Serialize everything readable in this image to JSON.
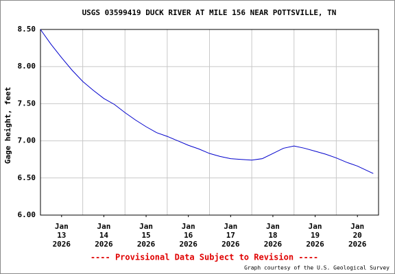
{
  "chart_data": {
    "type": "line",
    "title": "USGS 03599419 DUCK RIVER AT MILE 156 NEAR POTTSVILLE, TN",
    "y_label": "Gage height, feet",
    "footer": "---- Provisional Data Subject to Revision ----",
    "credit": "Graph courtesy of the U.S. Geological Survey",
    "xlim": [
      "2026-01-13T00:00",
      "2026-01-21T00:00"
    ],
    "xticks": [
      {
        "value": "2026-01-13T12:00",
        "label": [
          "Jan",
          "13",
          "2026"
        ]
      },
      {
        "value": "2026-01-14T12:00",
        "label": [
          "Jan",
          "14",
          "2026"
        ]
      },
      {
        "value": "2026-01-15T12:00",
        "label": [
          "Jan",
          "15",
          "2026"
        ]
      },
      {
        "value": "2026-01-16T12:00",
        "label": [
          "Jan",
          "16",
          "2026"
        ]
      },
      {
        "value": "2026-01-17T12:00",
        "label": [
          "Jan",
          "17",
          "2026"
        ]
      },
      {
        "value": "2026-01-18T12:00",
        "label": [
          "Jan",
          "18",
          "2026"
        ]
      },
      {
        "value": "2026-01-19T12:00",
        "label": [
          "Jan",
          "19",
          "2026"
        ]
      },
      {
        "value": "2026-01-20T12:00",
        "label": [
          "Jan",
          "20",
          "2026"
        ]
      }
    ],
    "xgrid": [
      "2026-01-14T00:00",
      "2026-01-15T00:00",
      "2026-01-16T00:00",
      "2026-01-17T00:00",
      "2026-01-18T00:00",
      "2026-01-19T00:00",
      "2026-01-20T00:00"
    ],
    "ylim": [
      6,
      8.5
    ],
    "yticks": [
      {
        "value": 6,
        "label": "6.00"
      },
      {
        "value": 6.5,
        "label": "6.50"
      },
      {
        "value": 7,
        "label": "7.00"
      },
      {
        "value": 7.5,
        "label": "7.50"
      },
      {
        "value": 8,
        "label": "8.00"
      },
      {
        "value": 8.5,
        "label": "8.50"
      }
    ],
    "grid": true,
    "series": [
      {
        "name": "Gage height",
        "color": "#0000cc",
        "x": [
          "2026-01-13T00:00",
          "2026-01-13T06:00",
          "2026-01-13T12:00",
          "2026-01-13T18:00",
          "2026-01-14T00:00",
          "2026-01-14T06:00",
          "2026-01-14T12:00",
          "2026-01-14T18:00",
          "2026-01-15T00:00",
          "2026-01-15T06:00",
          "2026-01-15T12:00",
          "2026-01-15T18:00",
          "2026-01-16T00:00",
          "2026-01-16T06:00",
          "2026-01-16T12:00",
          "2026-01-16T18:00",
          "2026-01-17T00:00",
          "2026-01-17T06:00",
          "2026-01-17T12:00",
          "2026-01-17T18:00",
          "2026-01-18T00:00",
          "2026-01-18T06:00",
          "2026-01-18T12:00",
          "2026-01-18T18:00",
          "2026-01-19T00:00",
          "2026-01-19T06:00",
          "2026-01-19T12:00",
          "2026-01-19T18:00",
          "2026-01-20T00:00",
          "2026-01-20T06:00",
          "2026-01-20T12:00",
          "2026-01-20T21:00"
        ],
        "values": [
          8.5,
          8.3,
          8.12,
          7.95,
          7.8,
          7.68,
          7.57,
          7.49,
          7.38,
          7.28,
          7.19,
          7.11,
          7.06,
          7.0,
          6.94,
          6.89,
          6.83,
          6.79,
          6.76,
          6.75,
          6.74,
          6.76,
          6.83,
          6.9,
          6.93,
          6.9,
          6.86,
          6.82,
          6.77,
          6.71,
          6.66,
          6.56
        ]
      }
    ]
  }
}
